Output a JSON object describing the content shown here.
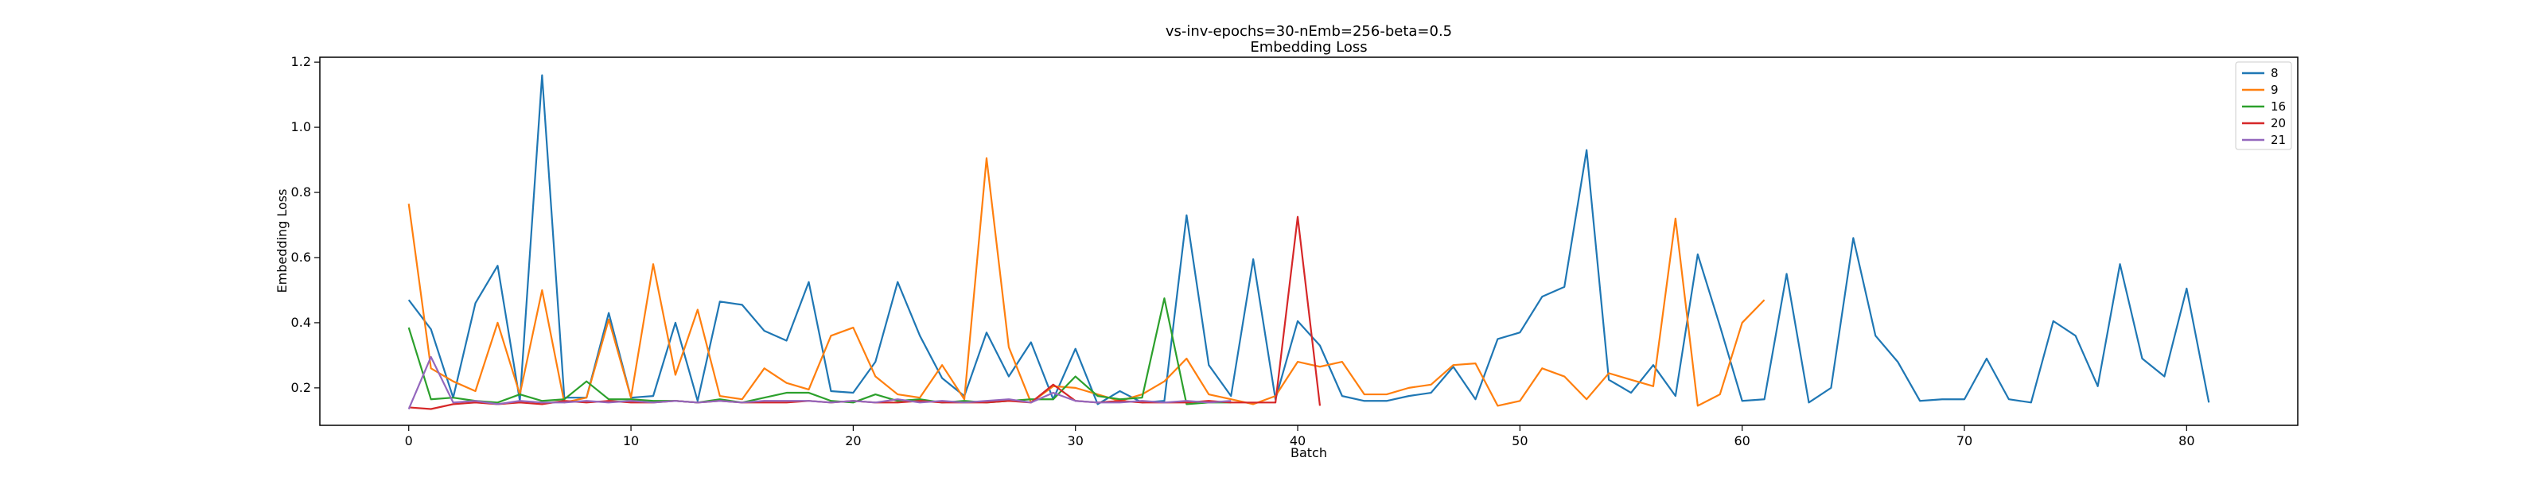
{
  "chart_data": {
    "type": "line",
    "title": "vs-inv-epochs=30-nEmb=256-beta=0.5",
    "subtitle": "Embedding Loss",
    "xlabel": "Batch",
    "ylabel": "Embedding Loss",
    "xlim": [
      -4,
      85
    ],
    "ylim": [
      0.085,
      1.215
    ],
    "xticks": [
      0,
      10,
      20,
      30,
      40,
      50,
      60,
      70,
      80
    ],
    "yticks": [
      0.2,
      0.4,
      0.6,
      0.8,
      1.0,
      1.2
    ],
    "ytick_labels": [
      "0.2",
      "0.4",
      "0.6",
      "0.8",
      "1.0",
      "1.2"
    ],
    "grid": false,
    "legend_position": "top-right",
    "series": [
      {
        "name": "8",
        "color": "#1f77b4",
        "values": [
          0.47,
          0.38,
          0.17,
          0.46,
          0.575,
          0.16,
          1.16,
          0.17,
          0.17,
          0.43,
          0.17,
          0.175,
          0.4,
          0.16,
          0.465,
          0.455,
          0.375,
          0.345,
          0.525,
          0.19,
          0.185,
          0.28,
          0.525,
          0.36,
          0.23,
          0.175,
          0.37,
          0.235,
          0.34,
          0.165,
          0.32,
          0.15,
          0.19,
          0.155,
          0.16,
          0.73,
          0.27,
          0.175,
          0.595,
          0.165,
          0.405,
          0.33,
          0.175,
          0.16,
          0.16,
          0.175,
          0.185,
          0.265,
          0.165,
          0.35,
          0.37,
          0.48,
          0.51,
          0.93,
          0.225,
          0.185,
          0.27,
          0.175,
          0.61,
          0.39,
          0.16,
          0.165,
          0.55,
          0.155,
          0.2,
          0.66,
          0.36,
          0.28,
          0.16,
          0.165,
          0.165,
          0.29,
          0.165,
          0.155,
          0.405,
          0.36,
          0.205,
          0.58,
          0.29,
          0.235,
          0.505,
          0.155
        ]
      },
      {
        "name": "9",
        "color": "#ff7f0e",
        "values": [
          0.765,
          0.26,
          0.22,
          0.19,
          0.4,
          0.18,
          0.5,
          0.155,
          0.17,
          0.41,
          0.17,
          0.58,
          0.24,
          0.44,
          0.175,
          0.165,
          0.26,
          0.215,
          0.195,
          0.36,
          0.385,
          0.235,
          0.18,
          0.17,
          0.27,
          0.165,
          0.905,
          0.325,
          0.155,
          0.205,
          0.2,
          0.18,
          0.16,
          0.18,
          0.22,
          0.29,
          0.18,
          0.165,
          0.15,
          0.175,
          0.28,
          0.265,
          0.28,
          0.18,
          0.18,
          0.2,
          0.21,
          0.27,
          0.275,
          0.145,
          0.16,
          0.26,
          0.235,
          0.165,
          0.245,
          0.225,
          0.205,
          0.72,
          0.145,
          0.18,
          0.4,
          0.47
        ]
      },
      {
        "name": "16",
        "color": "#2ca02c",
        "values": [
          0.385,
          0.165,
          0.17,
          0.16,
          0.155,
          0.18,
          0.16,
          0.165,
          0.22,
          0.165,
          0.165,
          0.16,
          0.16,
          0.155,
          0.165,
          0.155,
          0.17,
          0.185,
          0.185,
          0.16,
          0.155,
          0.18,
          0.16,
          0.165,
          0.155,
          0.16,
          0.155,
          0.16,
          0.165,
          0.165,
          0.235,
          0.175,
          0.165,
          0.17,
          0.475,
          0.15,
          0.155,
          0.155
        ]
      },
      {
        "name": "20",
        "color": "#d62728",
        "values": [
          0.14,
          0.135,
          0.15,
          0.155,
          0.15,
          0.155,
          0.15,
          0.16,
          0.155,
          0.16,
          0.155,
          0.155,
          0.16,
          0.155,
          0.16,
          0.155,
          0.155,
          0.155,
          0.16,
          0.155,
          0.16,
          0.155,
          0.155,
          0.16,
          0.155,
          0.155,
          0.155,
          0.16,
          0.155,
          0.21,
          0.16,
          0.155,
          0.16,
          0.155,
          0.155,
          0.155,
          0.16,
          0.155,
          0.155,
          0.155,
          0.725,
          0.145
        ]
      },
      {
        "name": "21",
        "color": "#9467bd",
        "values": [
          0.135,
          0.295,
          0.155,
          0.16,
          0.15,
          0.16,
          0.155,
          0.155,
          0.16,
          0.155,
          0.16,
          0.155,
          0.16,
          0.155,
          0.16,
          0.155,
          0.16,
          0.16,
          0.16,
          0.155,
          0.16,
          0.155,
          0.165,
          0.155,
          0.16,
          0.155,
          0.16,
          0.165,
          0.155,
          0.185,
          0.16,
          0.155,
          0.155,
          0.16,
          0.155,
          0.16,
          0.155,
          0.16
        ]
      }
    ]
  }
}
